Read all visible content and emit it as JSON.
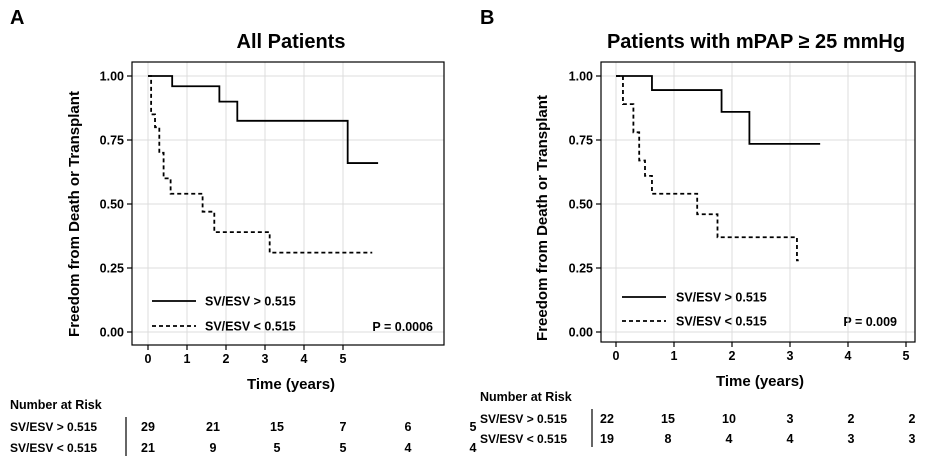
{
  "chart_data": [
    {
      "type": "line",
      "panel_label": "A",
      "title": "All Patients",
      "xlabel": "Time (years)",
      "ylabel": "Freedom from Death or Transplant",
      "xlim": [
        0,
        5.9
      ],
      "ylim": [
        0,
        1
      ],
      "x_ticks": [
        0,
        1,
        2,
        3,
        4,
        5
      ],
      "y_ticks": [
        "0.00",
        "0.25",
        "0.50",
        "0.75",
        "1.00"
      ],
      "grid": true,
      "legend_position": "bottom-left",
      "annotation": "P = 0.0006",
      "series": [
        {
          "name": "SV/ESV > 0.515",
          "style": "solid",
          "steps": [
            [
              0,
              1.0
            ],
            [
              0.62,
              0.96
            ],
            [
              1.83,
              0.9
            ],
            [
              2.29,
              0.825
            ],
            [
              5.12,
              0.66
            ],
            [
              5.9,
              0.66
            ]
          ]
        },
        {
          "name": "SV/ESV < 0.515",
          "style": "dashed",
          "steps": [
            [
              0,
              1.0
            ],
            [
              0.08,
              0.85
            ],
            [
              0.18,
              0.8
            ],
            [
              0.29,
              0.7
            ],
            [
              0.4,
              0.6
            ],
            [
              0.58,
              0.54
            ],
            [
              1.4,
              0.47
            ],
            [
              1.7,
              0.39
            ],
            [
              3.12,
              0.31
            ],
            [
              5.75,
              0.31
            ]
          ]
        }
      ],
      "number_at_risk": {
        "title": "Number at Risk",
        "rows": [
          {
            "label": "SV/ESV > 0.515",
            "values": [
              "29",
              "21",
              "15",
              "7",
              "6",
              "5"
            ]
          },
          {
            "label": "SV/ESV < 0.515",
            "values": [
              "21",
              "9",
              "5",
              "5",
              "4",
              "4"
            ]
          }
        ]
      }
    },
    {
      "type": "line",
      "panel_label": "B",
      "title": "Patients with mPAP ≥ 25 mmHg",
      "xlabel": "Time (years)",
      "ylabel": "Freedom from Death or Transplant",
      "xlim": [
        0,
        5
      ],
      "ylim": [
        0,
        1
      ],
      "x_ticks": [
        0,
        1,
        2,
        3,
        4,
        5
      ],
      "y_ticks": [
        "0.00",
        "0.25",
        "0.50",
        "0.75",
        "1.00"
      ],
      "grid": true,
      "legend_position": "bottom-left",
      "annotation": "P = 0.009",
      "series": [
        {
          "name": "SV/ESV > 0.515",
          "style": "solid",
          "steps": [
            [
              0,
              1.0
            ],
            [
              0.62,
              0.945
            ],
            [
              1.82,
              0.86
            ],
            [
              2.3,
              0.735
            ],
            [
              3.52,
              0.735
            ]
          ]
        },
        {
          "name": "SV/ESV < 0.515",
          "style": "dashed",
          "steps": [
            [
              0,
              1.0
            ],
            [
              0.12,
              0.89
            ],
            [
              0.3,
              0.78
            ],
            [
              0.4,
              0.67
            ],
            [
              0.5,
              0.61
            ],
            [
              0.62,
              0.54
            ],
            [
              1.4,
              0.46
            ],
            [
              1.75,
              0.37
            ],
            [
              3.12,
              0.28
            ],
            [
              3.15,
              0.28
            ]
          ]
        }
      ],
      "number_at_risk": {
        "title": "Number at Risk",
        "rows": [
          {
            "label": "SV/ESV > 0.515",
            "values": [
              "22",
              "15",
              "10",
              "3",
              "2",
              "2"
            ]
          },
          {
            "label": "SV/ESV < 0.515",
            "values": [
              "19",
              "8",
              "4",
              "4",
              "3",
              "3"
            ]
          }
        ]
      }
    }
  ]
}
